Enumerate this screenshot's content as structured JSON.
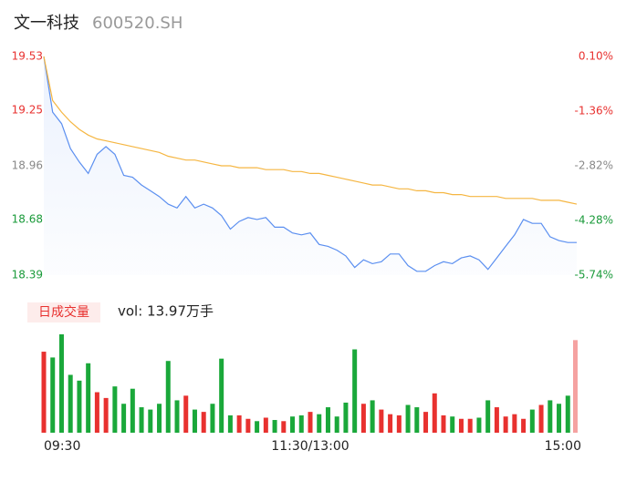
{
  "chart_data": {
    "type": "intraday",
    "title": "文一科技",
    "subtitle": "600520.SH",
    "categories": [
      "09:30",
      null,
      null,
      null,
      null,
      null,
      null,
      null,
      null,
      null,
      null,
      null,
      null,
      null,
      null,
      null,
      null,
      null,
      null,
      null,
      null,
      null,
      null,
      null,
      null,
      null,
      null,
      null,
      null,
      null,
      "11:30/13:00",
      null,
      null,
      null,
      null,
      null,
      null,
      null,
      null,
      null,
      null,
      null,
      null,
      null,
      null,
      null,
      null,
      null,
      null,
      null,
      null,
      null,
      null,
      null,
      null,
      null,
      null,
      null,
      null,
      null,
      "15:00"
    ],
    "series": [
      {
        "name": "price",
        "color": "#5b8ff0",
        "values": [
          19.53,
          19.24,
          19.18,
          19.05,
          18.98,
          18.92,
          19.02,
          19.06,
          19.02,
          18.91,
          18.9,
          18.86,
          18.83,
          18.8,
          18.76,
          18.74,
          18.8,
          18.74,
          18.76,
          18.74,
          18.7,
          18.63,
          18.67,
          18.69,
          18.68,
          18.69,
          18.64,
          18.64,
          18.61,
          18.6,
          18.61,
          18.55,
          18.54,
          18.52,
          18.49,
          18.43,
          18.47,
          18.45,
          18.46,
          18.5,
          18.5,
          18.44,
          18.41,
          18.41,
          18.44,
          18.46,
          18.45,
          18.48,
          18.49,
          18.47,
          18.42,
          18.48,
          18.54,
          18.6,
          18.68,
          18.66,
          18.66,
          18.59,
          18.57,
          18.56,
          18.56
        ]
      },
      {
        "name": "average",
        "color": "#f5b642",
        "values": [
          19.53,
          19.3,
          19.24,
          19.19,
          19.15,
          19.12,
          19.1,
          19.09,
          19.08,
          19.07,
          19.06,
          19.05,
          19.04,
          19.03,
          19.01,
          19.0,
          18.99,
          18.99,
          18.98,
          18.97,
          18.96,
          18.96,
          18.95,
          18.95,
          18.95,
          18.94,
          18.94,
          18.94,
          18.93,
          18.93,
          18.92,
          18.92,
          18.91,
          18.9,
          18.89,
          18.88,
          18.87,
          18.86,
          18.86,
          18.85,
          18.84,
          18.84,
          18.83,
          18.83,
          18.82,
          18.82,
          18.81,
          18.81,
          18.8,
          18.8,
          18.8,
          18.8,
          18.79,
          18.79,
          18.79,
          18.79,
          18.78,
          18.78,
          18.78,
          18.77,
          18.76
        ]
      }
    ],
    "ylim": [
      18.39,
      19.53
    ],
    "yticks": [
      19.53,
      19.25,
      18.96,
      18.68,
      18.39
    ],
    "ytick_colors": [
      "#e8312f",
      "#e8312f",
      "#888888",
      "#1a9a3a",
      "#1a9a3a"
    ],
    "y2lim": [
      -5.74,
      0.1
    ],
    "y2ticks": [
      {
        "value": 0.1,
        "label": "0.10%"
      },
      {
        "value": -1.36,
        "label": "-1.36%"
      },
      {
        "value": -2.82,
        "label": "-2.82%"
      },
      {
        "value": -4.28,
        "label": "-4.28%"
      },
      {
        "value": -5.74,
        "label": "-5.74%"
      }
    ],
    "volume_label": "日成交量",
    "volume_text": "vol: 13.97万手",
    "volume": [
      7000,
      6500,
      8500,
      5000,
      4500,
      6000,
      3500,
      3000,
      4000,
      2500,
      3800,
      2200,
      2000,
      2500,
      6200,
      2800,
      3200,
      2000,
      1800,
      2500,
      6400,
      1500,
      1500,
      1200,
      1000,
      1300,
      1100,
      1000,
      1400,
      1500,
      1800,
      1600,
      2200,
      1400,
      2600,
      7200,
      2500,
      2800,
      2000,
      1600,
      1500,
      2400,
      2200,
      1800,
      3400,
      1500,
      1400,
      1200,
      1200,
      1300,
      2800,
      2200,
      1400,
      1600,
      1200,
      2000,
      2400,
      2800,
      2500,
      3200,
      8000
    ],
    "volume_ylim": [
      0,
      8500
    ],
    "up_color": "#e8312f",
    "down_color": "#1aa83a"
  }
}
